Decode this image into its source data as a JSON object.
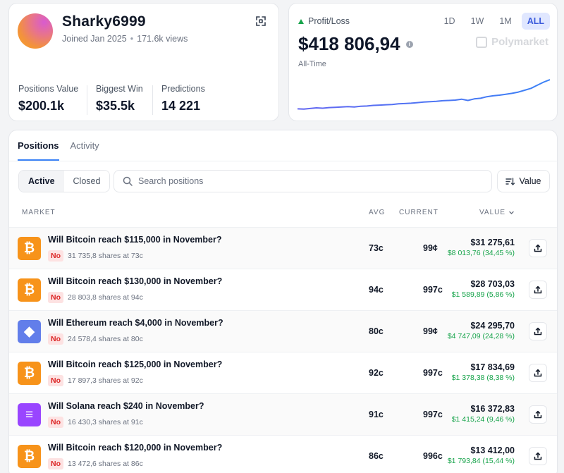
{
  "profile": {
    "username": "Sharky6999",
    "joined": "Joined Jan 2025",
    "views": "171.6k views",
    "stats": [
      {
        "label": "Positions Value",
        "value": "$200.1k"
      },
      {
        "label": "Biggest Win",
        "value": "$35.5k"
      },
      {
        "label": "Predictions",
        "value": "14 221"
      }
    ]
  },
  "pnl": {
    "label": "Profit/Loss",
    "value": "$418 806,94",
    "period_label": "All-Time",
    "ranges": [
      "1D",
      "1W",
      "1M",
      "ALL"
    ],
    "active_range": "ALL",
    "brand": "Polymarket",
    "series": [
      0.06,
      0.05,
      0.07,
      0.09,
      0.08,
      0.1,
      0.11,
      0.12,
      0.13,
      0.12,
      0.14,
      0.15,
      0.17,
      0.18,
      0.19,
      0.2,
      0.22,
      0.23,
      0.24,
      0.26,
      0.28,
      0.29,
      0.3,
      0.32,
      0.33,
      0.34,
      0.37,
      0.33,
      0.38,
      0.4,
      0.45,
      0.48,
      0.5,
      0.53,
      0.56,
      0.6,
      0.66,
      0.72,
      0.82,
      0.92,
      1.0
    ],
    "colors": {
      "line": "#6366f1",
      "line_end": "#3b82f6",
      "up": "#16a34a"
    }
  },
  "positions": {
    "tabs": [
      "Positions",
      "Activity"
    ],
    "active_tab": "Positions",
    "filters": [
      "Active",
      "Closed"
    ],
    "active_filter": "Active",
    "search_placeholder": "Search positions",
    "sort_label": "Value",
    "columns": {
      "market": "MARKET",
      "avg": "AVG",
      "current": "CURRENT",
      "value": "VALUE"
    },
    "rows": [
      {
        "icon": "bitcoin-icon",
        "glyph": "₿",
        "color": "#f7931a",
        "title": "Will Bitcoin reach $115,000 in November?",
        "outcome": "No",
        "shares": "31 735,8 shares at 73c",
        "avg": "73c",
        "current": "99¢",
        "value": "$31 275,61",
        "pnl": "$8 013,76 (34,45 %)"
      },
      {
        "icon": "bitcoin-icon",
        "glyph": "₿",
        "color": "#f7931a",
        "title": "Will Bitcoin reach $130,000 in November?",
        "outcome": "No",
        "shares": "28 803,8 shares at 94c",
        "avg": "94c",
        "current": "997c",
        "value": "$28 703,03",
        "pnl": "$1 589,89 (5,86 %)"
      },
      {
        "icon": "ethereum-icon",
        "glyph": "◆",
        "color": "#627eea",
        "title": "Will Ethereum reach $4,000 in November?",
        "outcome": "No",
        "shares": "24 578,4 shares at 80c",
        "avg": "80c",
        "current": "99¢",
        "value": "$24 295,70",
        "pnl": "$4 747,09 (24,28 %)"
      },
      {
        "icon": "bitcoin-icon",
        "glyph": "₿",
        "color": "#f7931a",
        "title": "Will Bitcoin reach $125,000 in November?",
        "outcome": "No",
        "shares": "17 897,3 shares at 92c",
        "avg": "92c",
        "current": "997c",
        "value": "$17 834,69",
        "pnl": "$1 378,38 (8,38 %)"
      },
      {
        "icon": "solana-icon",
        "glyph": "≡",
        "color": "#9945ff",
        "title": "Will Solana reach $240 in November?",
        "outcome": "No",
        "shares": "16 430,3 shares at 91c",
        "avg": "91c",
        "current": "997c",
        "value": "$16 372,83",
        "pnl": "$1 415,24 (9,46 %)"
      },
      {
        "icon": "bitcoin-icon",
        "glyph": "₿",
        "color": "#f7931a",
        "title": "Will Bitcoin reach $120,000 in November?",
        "outcome": "No",
        "shares": "13 472,6 shares at 86c",
        "avg": "86c",
        "current": "996c",
        "value": "$13 412,00",
        "pnl": "$1 793,84 (15,44 %)"
      }
    ]
  }
}
